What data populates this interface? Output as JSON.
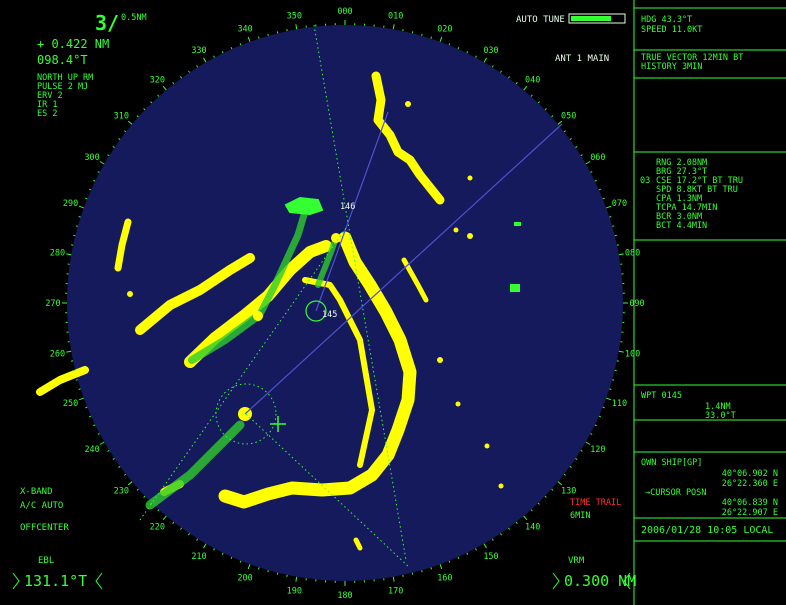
{
  "range": "3/",
  "rings": "0.5NM",
  "cursor_range": "+ 0.422 NM",
  "cursor_bearing": "098.4°T",
  "modes": [
    "NORTH UP RM",
    "PULSE 2 MJ",
    "ERV 2",
    "IR 1",
    "ES 2"
  ],
  "auto_tune": "AUTO TUNE",
  "antenna": "ANT 1 MAIN",
  "bottom_left": [
    "X-BAND",
    "A/C AUTO",
    "OFFCENTER"
  ],
  "ebl": {
    "label": "EBL",
    "value": "131.1°T"
  },
  "vrm": {
    "label": "VRM",
    "value": "0.300 NM"
  },
  "time_trail": {
    "label": "TIME TRAIL",
    "value": "6MIN"
  },
  "bearing_labels": [
    "000",
    "010",
    "020",
    "030",
    "040",
    "050",
    "060",
    "070",
    "080",
    "090",
    "100",
    "110",
    "120",
    "130",
    "140",
    "150",
    "160",
    "170",
    "180",
    "190",
    "200",
    "210",
    "220",
    "230",
    "240",
    "250",
    "260",
    "270",
    "280",
    "290",
    "300",
    "310",
    "320",
    "330",
    "340",
    "350"
  ],
  "targets": [
    "146",
    "145"
  ],
  "panel": {
    "heading": "HDG 43.3°T",
    "speed": "SPEED 11.0KT",
    "vector": [
      "TRUE VECTOR 12MIN BT",
      "HISTORY 3MIN"
    ],
    "target_no": "03",
    "target_lines": [
      "RNG 2.08NM",
      "BRG 27.3°T",
      "CSE 17.2°T BT TRU",
      "SPD 8.8KT BT TRU",
      "CPA 1.3NM",
      "TCPA 14.7MIN",
      "BCR 3.0NM",
      "BCT 4.4MIN"
    ],
    "waypoint": "WPT 0145",
    "waypoint_range": "1.4NM",
    "waypoint_bearing": "33.0°T",
    "own_ship": "OWN SHIP[GP]",
    "own_lat": "40°06.902 N",
    "own_lon": "26°22.360 E",
    "cursor_posn": "→CURSOR POSN",
    "cursor_lat": "40°06.839 N",
    "cursor_lon": "26°22.907 E",
    "datetime": "2006/01/28 10:05 LOCAL"
  }
}
